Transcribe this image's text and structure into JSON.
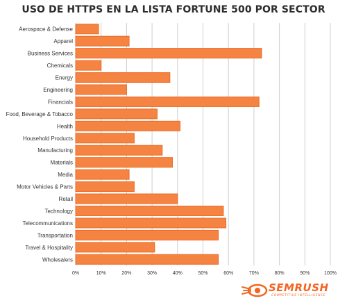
{
  "chart_data": {
    "type": "bar",
    "orientation": "horizontal",
    "title": "USO DE HTTPS EN LA LISTA FORTUNE 500 POR SECTOR",
    "categories": [
      "Aerospace & Defense",
      "Apparel",
      "Business Services",
      "Chemicals",
      "Energy",
      "Engineering",
      "Financials",
      "Food, Beverage & Tobacco",
      "Health",
      "Household Products",
      "Manufacturing",
      "Materials",
      "Media",
      "Motor Vehicles & Parts",
      "Retail",
      "Technology",
      "Telecommunications",
      "Transportation",
      "Travel & Hospitality",
      "Wholesalers"
    ],
    "values": [
      9,
      21,
      73,
      10,
      37,
      20,
      72,
      32,
      41,
      23,
      34,
      38,
      21,
      23,
      40,
      58,
      59,
      56,
      31,
      56
    ],
    "xlim": [
      0,
      100
    ],
    "x_ticks": [
      "0%",
      "10%",
      "20%",
      "30%",
      "40%",
      "50%",
      "60%",
      "70%",
      "80%",
      "90%",
      "100%"
    ],
    "grid": true,
    "bar_color": "#f58443",
    "bar_border_color": "#ea6a26"
  },
  "brand": {
    "name": "SEMRUSH",
    "tagline": "COMPETITIVE INTELLIGENCE",
    "icon": "flame-icon",
    "color": "#f26522"
  }
}
